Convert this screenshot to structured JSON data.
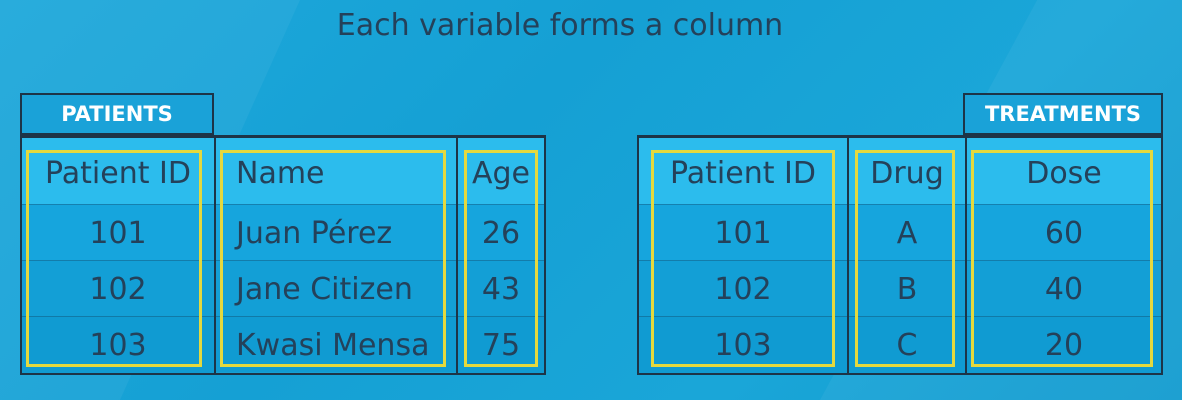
{
  "title": "Each variable forms a column",
  "colors": {
    "highlight": "#e4d93e",
    "border": "#1d3447",
    "text": "#24415a"
  },
  "patients": {
    "label": "PATIENTS",
    "headers": [
      "Patient ID",
      "Name",
      "Age"
    ],
    "rows": [
      [
        "101",
        "Juan Pérez",
        "26"
      ],
      [
        "102",
        "Jane Citizen",
        "43"
      ],
      [
        "103",
        "Kwasi Mensa",
        "75"
      ]
    ]
  },
  "treatments": {
    "label": "TREATMENTS",
    "headers": [
      "Patient ID",
      "Drug",
      "Dose"
    ],
    "rows": [
      [
        "101",
        "A",
        "60"
      ],
      [
        "102",
        "B",
        "40"
      ],
      [
        "103",
        "C",
        "20"
      ]
    ]
  }
}
